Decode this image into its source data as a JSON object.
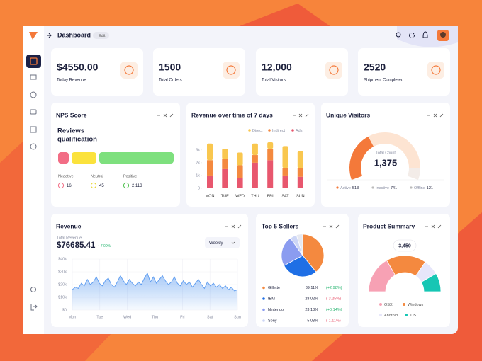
{
  "header": {
    "title": "Dashboard",
    "edit": "Edit"
  },
  "stats": [
    {
      "value": "$4550.00",
      "label": "Today Revenue"
    },
    {
      "value": "1500",
      "label": "Total Orders"
    },
    {
      "value": "12,000",
      "label": "Total Visitors"
    },
    {
      "value": "2520",
      "label": "Shipment Completed"
    }
  ],
  "nps": {
    "title": "NPS Score",
    "heading": [
      "Reviews",
      "qualification"
    ],
    "items": [
      {
        "label": "Negative",
        "value": "16"
      },
      {
        "label": "Neutral",
        "value": "45"
      },
      {
        "label": "Positive",
        "value": "2,113"
      }
    ]
  },
  "revenue_week": {
    "type": "bar",
    "title": "Revenue over time of 7 days",
    "categories": [
      "MON",
      "TUE",
      "WED",
      "THU",
      "FRI",
      "SAT",
      "SUN"
    ],
    "series": [
      {
        "name": "Direct",
        "color": "#f9c74f",
        "values": [
          1300,
          800,
          1000,
          900,
          500,
          1700,
          1300
        ]
      },
      {
        "name": "Indirect",
        "color": "#f4893f",
        "values": [
          1200,
          800,
          1000,
          600,
          900,
          600,
          700
        ]
      },
      {
        "name": "Ads",
        "color": "#e8576e",
        "values": [
          1000,
          1500,
          800,
          2000,
          2200,
          1000,
          900
        ]
      }
    ],
    "ylim": [
      0,
      3600
    ],
    "yticks": [
      0,
      {
        "value": 1000,
        "label": "1k"
      },
      {
        "value": 2000,
        "label": "2k"
      },
      {
        "value": 3000,
        "label": "3k"
      }
    ]
  },
  "visitors": {
    "type": "gauge",
    "title": "Unique Visitors",
    "total_label": "Total Count",
    "total": "1,375",
    "series": [
      {
        "name": "Active",
        "color": "#f4793a",
        "value": 513
      },
      {
        "name": "Inactive",
        "color": "#fde4d2",
        "value": 741
      },
      {
        "name": "Offline",
        "color": "#f3ece8",
        "value": 121
      }
    ]
  },
  "revenue": {
    "type": "area",
    "title": "Revenue",
    "total_label": "Total Revenue",
    "total": "$76685.41",
    "change": "↑ 7.00%",
    "period": "Weekly",
    "categories": [
      "Mon",
      "Tue",
      "Wed",
      "Thu",
      "Fri",
      "Sat",
      "Sun"
    ],
    "values": [
      16000,
      18000,
      17000,
      21000,
      19000,
      24000,
      20000,
      22000,
      26000,
      21000,
      19000,
      23000,
      25000,
      20000,
      18000,
      22000,
      27000,
      23000,
      20000,
      24000,
      21000,
      19000,
      22000,
      20000,
      25000,
      29000,
      22000,
      26000,
      21000,
      24000,
      27000,
      23000,
      20000,
      22000,
      26000,
      21000,
      19000,
      23000,
      20000,
      22000,
      18000,
      21000,
      24000,
      20000,
      17000,
      22000,
      19000,
      21000,
      18000,
      20000,
      17000,
      19000,
      16000,
      18000,
      15000,
      16000
    ],
    "color": "#5b9bf0",
    "ylim": [
      0,
      40000
    ],
    "yticks": [
      {
        "value": 0,
        "label": "$0"
      },
      {
        "value": 10000,
        "label": "$10k"
      },
      {
        "value": 20000,
        "label": "$20k"
      },
      {
        "value": 30000,
        "label": "$30k"
      },
      {
        "value": 40000,
        "label": "$40k"
      }
    ]
  },
  "sellers": {
    "type": "pie",
    "title": "Top 5 Sellers",
    "categories": [
      "Gillette",
      "IBM",
      "Nintendo",
      "Sony"
    ],
    "values": [
      39.11,
      28.02,
      23.13,
      5.03
    ],
    "value_labels": [
      "39.11%",
      "28.02%",
      "23.13%",
      "5.03%"
    ],
    "changes": [
      "(+2.98%)",
      "(-3.25%)",
      "(+0.14%)",
      "(-1.11%)"
    ],
    "colors": [
      "#f4893f",
      "#1f6fe5",
      "#8b9cf0",
      "#cdd6f6"
    ]
  },
  "products": {
    "type": "donut",
    "title": "Product Summary",
    "categories": [
      "OSX",
      "Windows",
      "Android",
      "iOS"
    ],
    "values": [
      3200,
      3450,
      1340,
      1600
    ],
    "colors": [
      "#f7a1b4",
      "#f4893f",
      "#e6e6fa",
      "#16c6b4"
    ],
    "tooltip": "3,450"
  }
}
